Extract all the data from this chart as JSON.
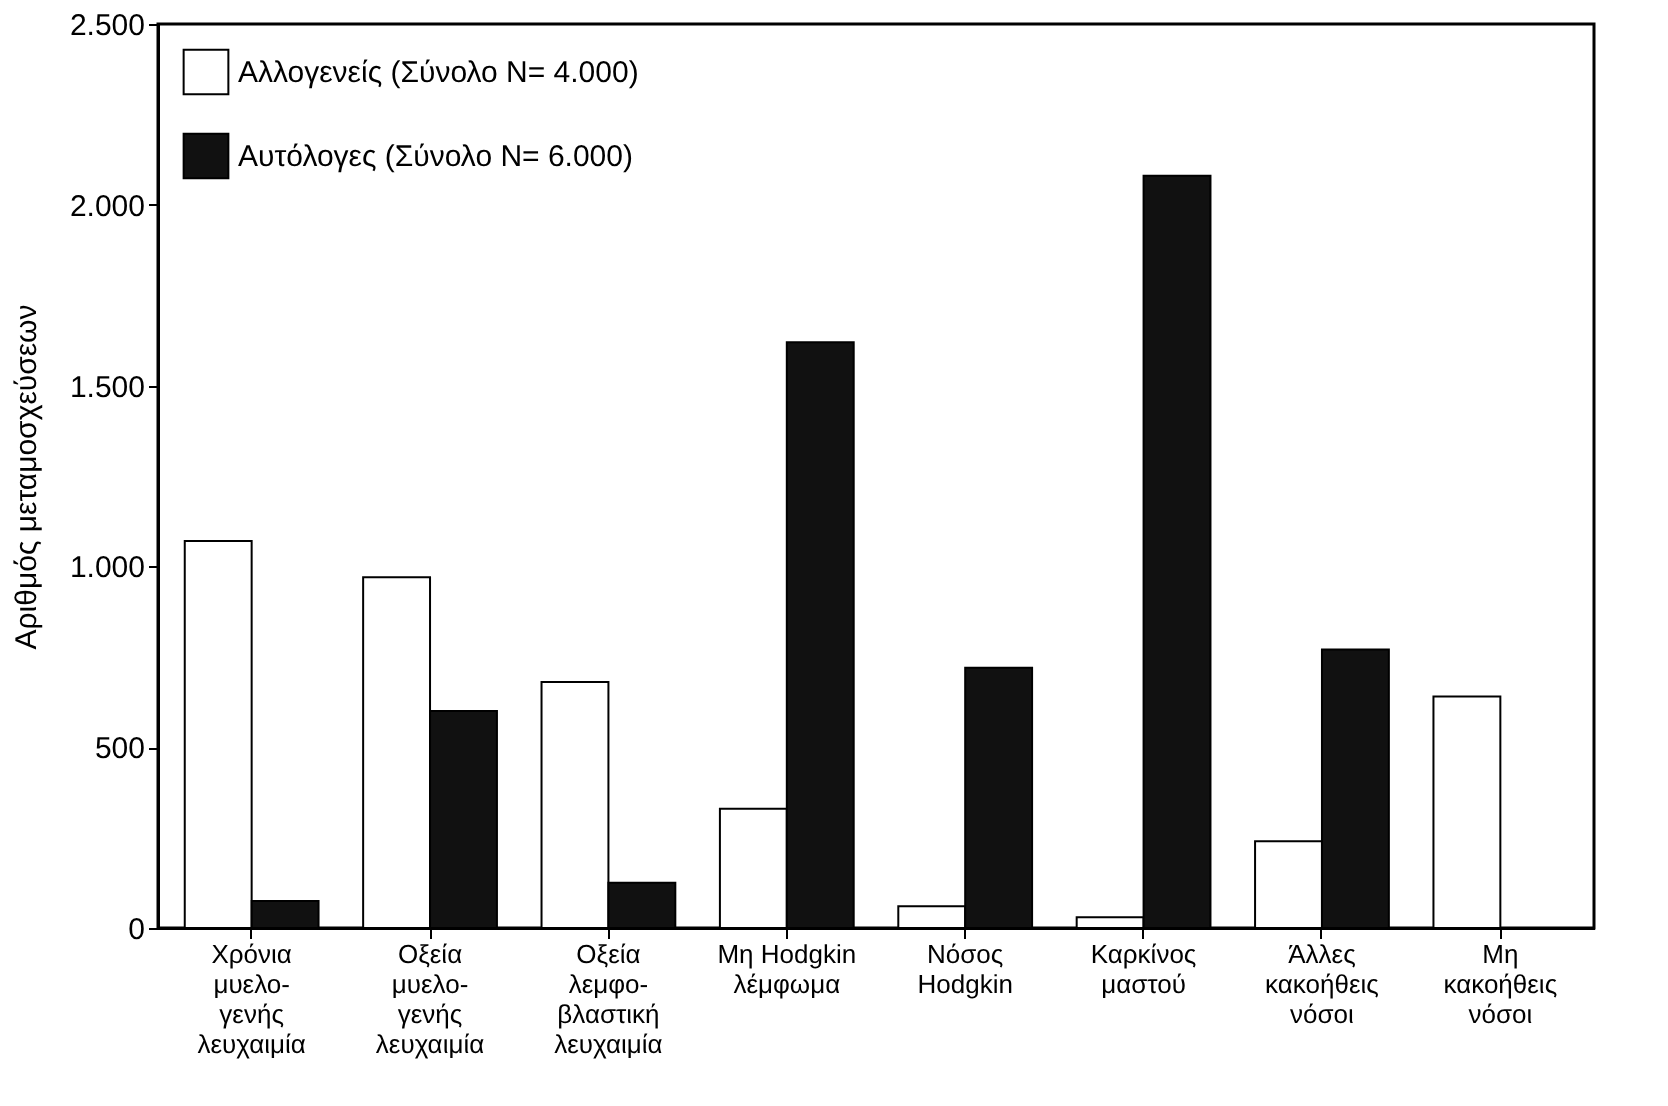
{
  "chart_data": {
    "type": "bar",
    "ylabel": "Αριθμός μεταμοσχεύσεων",
    "categories": [
      "Χρόνια\nμυελο-\nγενής\nλευχαιμία",
      "Οξεία\nμυελο-\nγενής\nλευχαιμία",
      "Οξεία\nλεμφο-\nβλαστική\nλευχαιμία",
      "Μη Hodgkin\nλέμφωμα",
      "Νόσος\nHodgkin",
      "Καρκίνος\nμαστού",
      "Άλλες\nκακοήθεις\nνόσοι",
      "Μη\nκακοήθεις\nνόσοι"
    ],
    "series": [
      {
        "name": "Αλλογενείς (Σύνολο N= 4.000)",
        "color": "#ffffff",
        "values": [
          1070,
          970,
          680,
          330,
          60,
          30,
          240,
          640
        ]
      },
      {
        "name": "Αυτόλογες (Σύνολο N= 6.000)",
        "color": "#111111",
        "values": [
          75,
          600,
          125,
          1620,
          720,
          2080,
          770,
          null
        ]
      }
    ],
    "ylim": [
      0,
      2500
    ],
    "yticks": [
      {
        "value": 0,
        "label": "0"
      },
      {
        "value": 500,
        "label": "500"
      },
      {
        "value": 1000,
        "label": "1.000"
      },
      {
        "value": 1500,
        "label": "1.500"
      },
      {
        "value": 2000,
        "label": "2.000"
      },
      {
        "value": 2500,
        "label": "2.500"
      }
    ],
    "grid": false,
    "legend": "top left"
  }
}
